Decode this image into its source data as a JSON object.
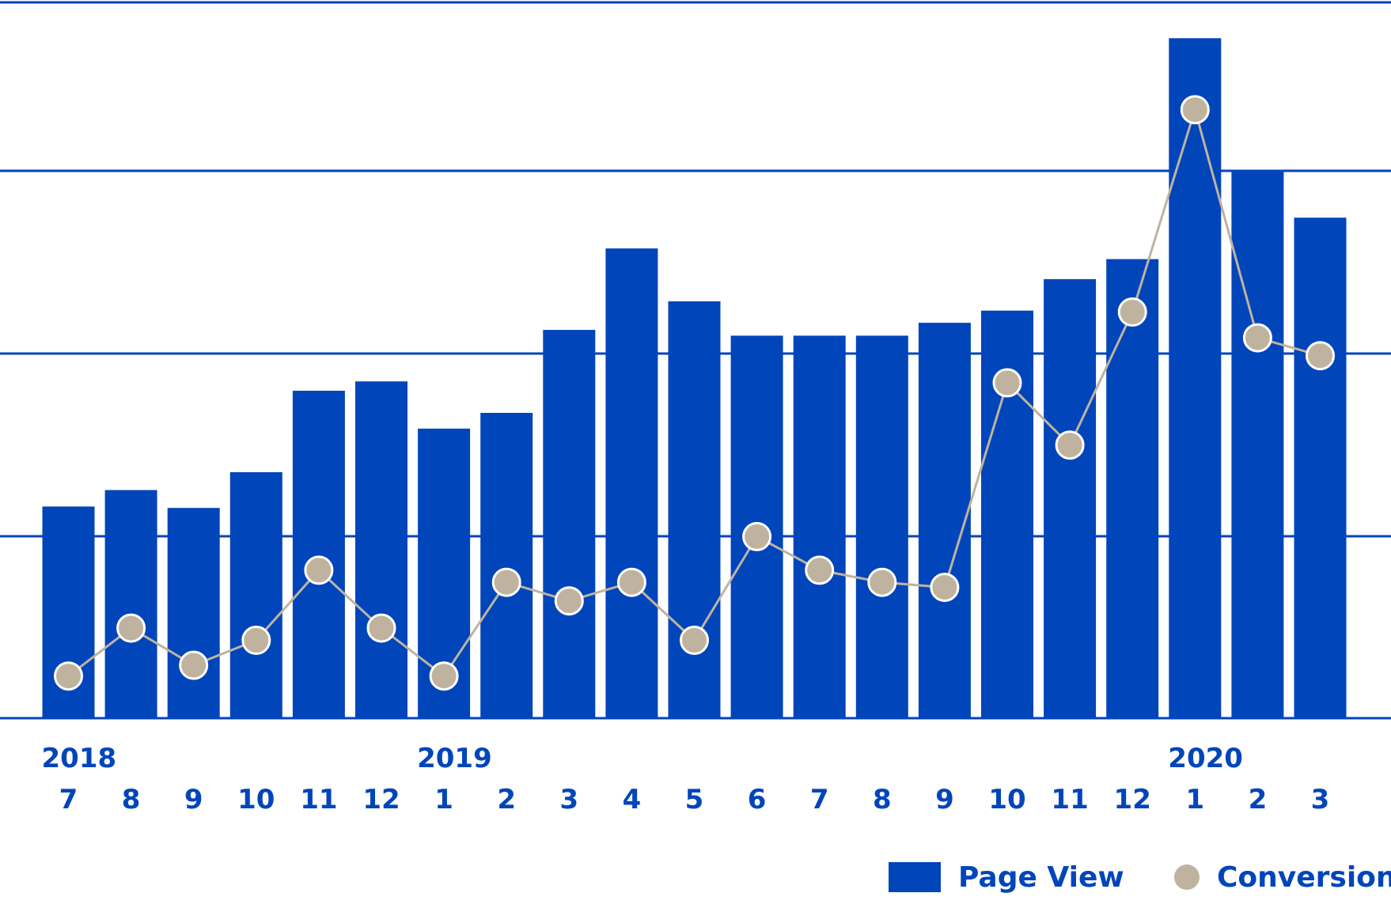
{
  "chart_data": {
    "type": "bar",
    "title": "",
    "xlabel": "",
    "ylabel": "",
    "categories": [
      "7",
      "8",
      "9",
      "10",
      "11",
      "12",
      "1",
      "2",
      "3",
      "4",
      "5",
      "6",
      "7",
      "8",
      "9",
      "10",
      "11",
      "12",
      "1",
      "2",
      "3"
    ],
    "year_labels": [
      {
        "label": "2018",
        "index": 0
      },
      {
        "label": "2019",
        "index": 6
      },
      {
        "label": "2020",
        "index": 18
      }
    ],
    "ylim": [
      0,
      1
    ],
    "grid": true,
    "legend_position": "bottom-right",
    "colors": {
      "bar": "#0145BB",
      "marker": "#BFB39F",
      "line": "#BFB39F",
      "grid": "#0145BB",
      "text": "#0145BB"
    },
    "series": [
      {
        "name": "Page View",
        "kind": "bar",
        "values": [
          0.296,
          0.319,
          0.294,
          0.344,
          0.458,
          0.471,
          0.405,
          0.427,
          0.543,
          0.657,
          0.583,
          0.535,
          0.535,
          0.535,
          0.553,
          0.57,
          0.614,
          0.642,
          0.951,
          0.764,
          0.7
        ]
      },
      {
        "name": "Conversion",
        "kind": "line-marker",
        "values": [
          0.059,
          0.126,
          0.074,
          0.109,
          0.207,
          0.126,
          0.059,
          0.19,
          0.164,
          0.19,
          0.109,
          0.254,
          0.207,
          0.19,
          0.183,
          0.469,
          0.382,
          0.568,
          0.851,
          0.532,
          0.507
        ]
      }
    ]
  }
}
